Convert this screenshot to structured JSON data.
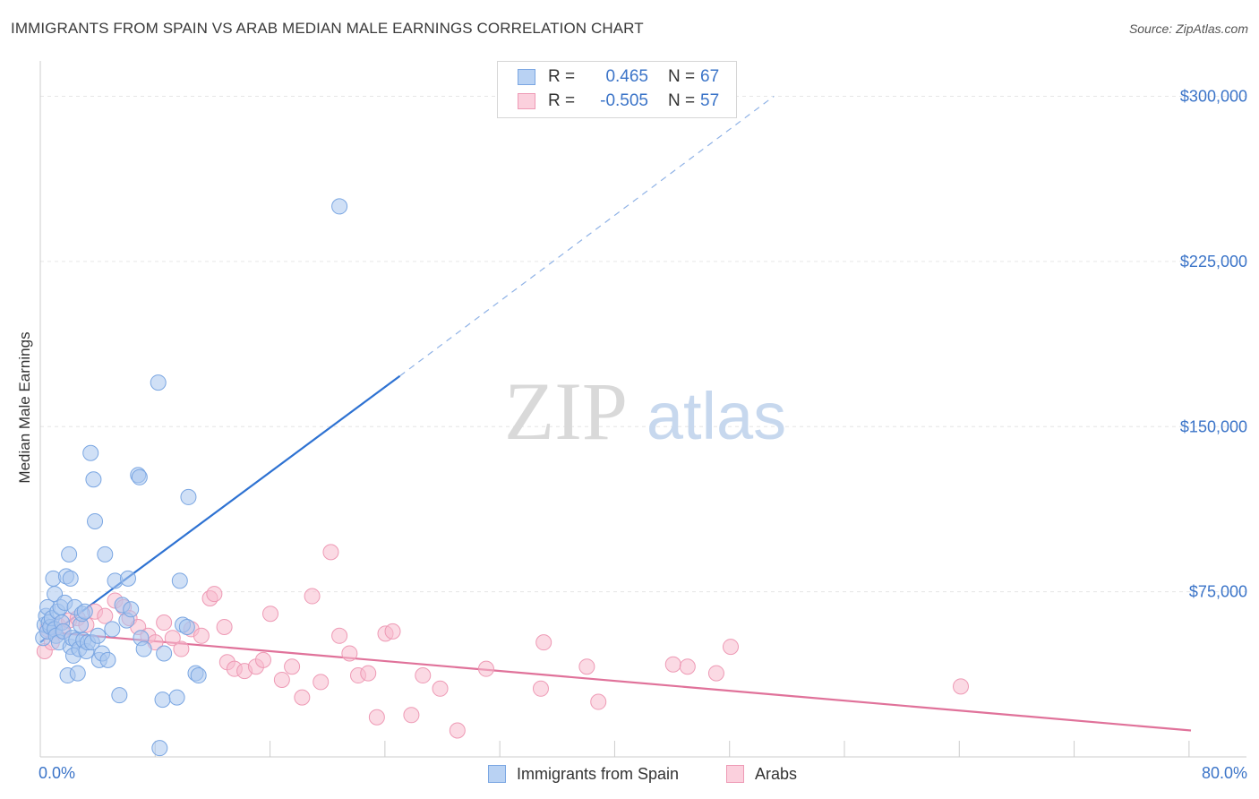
{
  "title": "IMMIGRANTS FROM SPAIN VS ARAB MEDIAN MALE EARNINGS CORRELATION CHART",
  "source": "Source: ZipAtlas.com",
  "watermark": {
    "zip": "ZIP",
    "atlas": "atlas"
  },
  "colors": {
    "blue_fill": "#a9c7ef",
    "blue_stroke": "#7aa6e2",
    "blue_line": "#2e72d2",
    "pink_fill": "#f7bccd",
    "pink_stroke": "#ee9ab5",
    "pink_line": "#e0729a",
    "grid": "#e6e6e6",
    "axis_text": "#3b74c8"
  },
  "legend": {
    "rows": [
      {
        "r_label": "R =",
        "r_value": "0.465",
        "n_label": "N =",
        "n_value": "67"
      },
      {
        "r_label": "R =",
        "r_value": "-0.505",
        "n_label": "N =",
        "n_value": "57"
      }
    ]
  },
  "bottom_legend": {
    "series1": "Immigrants from Spain",
    "series2": "Arabs"
  },
  "chart_data": {
    "type": "scatter",
    "title": "IMMIGRANTS FROM SPAIN VS ARAB MEDIAN MALE EARNINGS CORRELATION CHART",
    "xlabel": "",
    "ylabel": "Median Male Earnings",
    "xlim": [
      0,
      80
    ],
    "ylim": [
      0,
      312000
    ],
    "x_tick_labels": [
      "0.0%",
      "80.0%"
    ],
    "y_ticks": [
      {
        "value": 75000,
        "label": "$75,000"
      },
      {
        "value": 150000,
        "label": "$150,000"
      },
      {
        "value": 225000,
        "label": "$225,000"
      },
      {
        "value": 300000,
        "label": "$300,000"
      }
    ],
    "series": [
      {
        "name": "Immigrants from Spain",
        "R": 0.465,
        "N": 67,
        "trend": {
          "x0": 0,
          "y0": 52000,
          "x1": 25,
          "y1": 173000,
          "x_dash_end": 51,
          "y_dash_end": 300000
        },
        "points": [
          [
            0.2,
            54000
          ],
          [
            0.3,
            60000
          ],
          [
            0.4,
            64000
          ],
          [
            0.5,
            68000
          ],
          [
            0.5,
            57000
          ],
          [
            0.6,
            61000
          ],
          [
            0.7,
            59000
          ],
          [
            0.8,
            63000
          ],
          [
            0.9,
            81000
          ],
          [
            1.0,
            58000
          ],
          [
            1.0,
            74000
          ],
          [
            1.1,
            55000
          ],
          [
            1.2,
            66000
          ],
          [
            1.3,
            52000
          ],
          [
            1.4,
            68000
          ],
          [
            1.5,
            61000
          ],
          [
            1.6,
            57000
          ],
          [
            1.7,
            70000
          ],
          [
            1.8,
            82000
          ],
          [
            1.9,
            37000
          ],
          [
            2.0,
            92000
          ],
          [
            2.1,
            81000
          ],
          [
            2.1,
            50000
          ],
          [
            2.2,
            54000
          ],
          [
            2.3,
            46000
          ],
          [
            2.4,
            68000
          ],
          [
            2.5,
            53000
          ],
          [
            2.6,
            38000
          ],
          [
            2.7,
            49000
          ],
          [
            2.8,
            60000
          ],
          [
            2.9,
            65000
          ],
          [
            3.0,
            53000
          ],
          [
            3.1,
            66000
          ],
          [
            3.2,
            48000
          ],
          [
            3.3,
            52000
          ],
          [
            3.5,
            138000
          ],
          [
            3.6,
            52000
          ],
          [
            3.7,
            126000
          ],
          [
            3.8,
            107000
          ],
          [
            4.0,
            55000
          ],
          [
            4.1,
            44000
          ],
          [
            4.3,
            47000
          ],
          [
            4.5,
            92000
          ],
          [
            4.7,
            44000
          ],
          [
            5.0,
            58000
          ],
          [
            5.2,
            80000
          ],
          [
            5.5,
            28000
          ],
          [
            5.7,
            69000
          ],
          [
            6.0,
            62000
          ],
          [
            6.1,
            81000
          ],
          [
            6.3,
            67000
          ],
          [
            6.8,
            128000
          ],
          [
            6.9,
            127000
          ],
          [
            7.0,
            54000
          ],
          [
            7.2,
            49000
          ],
          [
            8.2,
            170000
          ],
          [
            8.5,
            26000
          ],
          [
            8.6,
            47000
          ],
          [
            9.5,
            27000
          ],
          [
            9.7,
            80000
          ],
          [
            9.9,
            60000
          ],
          [
            10.2,
            59000
          ],
          [
            10.3,
            118000
          ],
          [
            10.8,
            38000
          ],
          [
            11.0,
            37000
          ],
          [
            20.8,
            250000
          ],
          [
            8.3,
            4000
          ]
        ]
      },
      {
        "name": "Arabs",
        "R": -0.505,
        "N": 57,
        "trend": {
          "x0": 0,
          "y0": 57000,
          "x1": 80,
          "y1": 12000
        },
        "points": [
          [
            0.3,
            48000
          ],
          [
            0.5,
            58000
          ],
          [
            0.8,
            52000
          ],
          [
            1.2,
            60000
          ],
          [
            1.5,
            57000
          ],
          [
            2.0,
            62000
          ],
          [
            2.6,
            63000
          ],
          [
            3.2,
            60000
          ],
          [
            3.8,
            66000
          ],
          [
            4.5,
            64000
          ],
          [
            5.2,
            71000
          ],
          [
            5.8,
            68000
          ],
          [
            6.2,
            63000
          ],
          [
            6.8,
            59000
          ],
          [
            7.5,
            55000
          ],
          [
            8.0,
            52000
          ],
          [
            8.6,
            61000
          ],
          [
            9.2,
            54000
          ],
          [
            9.8,
            49000
          ],
          [
            10.5,
            58000
          ],
          [
            11.2,
            55000
          ],
          [
            11.8,
            72000
          ],
          [
            12.1,
            74000
          ],
          [
            12.8,
            59000
          ],
          [
            13.0,
            43000
          ],
          [
            13.5,
            40000
          ],
          [
            14.2,
            39000
          ],
          [
            15.0,
            41000
          ],
          [
            15.5,
            44000
          ],
          [
            16.0,
            65000
          ],
          [
            16.8,
            35000
          ],
          [
            17.5,
            41000
          ],
          [
            18.2,
            27000
          ],
          [
            18.9,
            73000
          ],
          [
            19.5,
            34000
          ],
          [
            20.2,
            93000
          ],
          [
            20.8,
            55000
          ],
          [
            21.5,
            47000
          ],
          [
            22.1,
            37000
          ],
          [
            22.8,
            38000
          ],
          [
            23.4,
            18000
          ],
          [
            24.0,
            56000
          ],
          [
            24.5,
            57000
          ],
          [
            25.8,
            19000
          ],
          [
            26.6,
            37000
          ],
          [
            27.8,
            31000
          ],
          [
            29.0,
            12000
          ],
          [
            31.0,
            40000
          ],
          [
            34.8,
            31000
          ],
          [
            35.0,
            52000
          ],
          [
            38.0,
            41000
          ],
          [
            38.8,
            25000
          ],
          [
            44.0,
            42000
          ],
          [
            45.0,
            41000
          ],
          [
            47.0,
            38000
          ],
          [
            48.0,
            50000
          ],
          [
            64.0,
            32000
          ]
        ]
      }
    ]
  }
}
